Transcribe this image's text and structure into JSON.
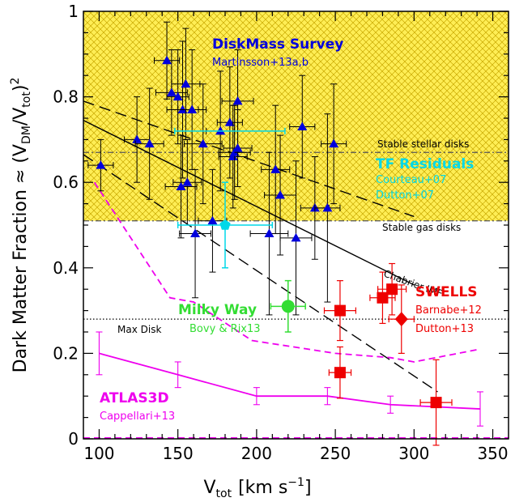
{
  "chart_data": {
    "type": "scatter",
    "xlabel": {
      "base": "V",
      "sub": "tot",
      "unit": "[km s",
      "unit_sup": "−1",
      "unit_end": "]"
    },
    "ylabel": {
      "prefix": "Dark Matter Fraction ≈ (V",
      "sub1": "DM",
      "mid": "/V",
      "sub2": "tot",
      "suffix": ")",
      "sup": "2"
    },
    "xlim": [
      90,
      360
    ],
    "ylim": [
      0,
      1
    ],
    "x_ticks": [
      "100",
      "150",
      "200",
      "250",
      "300",
      "350"
    ],
    "y_ticks": [
      "0",
      "0.2",
      "0.4",
      "0.6",
      "0.8",
      "1"
    ],
    "colors": {
      "hatch_fill": "#ffee55",
      "hatch_line": "#c8a800",
      "blue": "#0000dd",
      "cyan": "#00d8e8",
      "red": "#ee0000",
      "green": "#33dd33",
      "magenta": "#ee00ee"
    },
    "bands": [
      {
        "y_low": 0.51,
        "y_high": 1.0,
        "label": "Stable gas disks",
        "line_y": 0.51
      },
      {
        "line_y": 0.67,
        "label": "Stable stellar disks"
      }
    ],
    "reference_lines": [
      {
        "name": "Max Disk",
        "y": 0.28,
        "style": "dotted"
      }
    ],
    "model_lines": [
      {
        "name": "Chabrier IMF",
        "style": "solid",
        "points": [
          [
            90,
            0.745
          ],
          [
            300,
            0.36
          ]
        ]
      },
      {
        "style": "dashed",
        "points": [
          [
            90,
            0.79
          ],
          [
            300,
            0.52
          ]
        ]
      },
      {
        "style": "dashed",
        "points": [
          [
            90,
            0.665
          ],
          [
            315,
            0.11
          ]
        ]
      }
    ],
    "series": [
      {
        "name": "DiskMass Survey",
        "sublabel": "Martinsson+13a,b",
        "marker": "triangle",
        "points": [
          {
            "x": 101,
            "y": 0.64,
            "xerr": 8,
            "yerr": 0.06
          },
          {
            "x": 124,
            "y": 0.7,
            "xerr": 8,
            "yerr": 0.1
          },
          {
            "x": 132,
            "y": 0.69,
            "xerr": 9,
            "yerr": 0.13
          },
          {
            "x": 143,
            "y": 0.885,
            "xerr": 8,
            "yerr": 0.09
          },
          {
            "x": 146,
            "y": 0.81,
            "xerr": 10,
            "yerr": 0.1
          },
          {
            "x": 150,
            "y": 0.8,
            "xerr": 7,
            "yerr": 0.11
          },
          {
            "x": 152,
            "y": 0.59,
            "xerr": 10,
            "yerr": 0.12
          },
          {
            "x": 153,
            "y": 0.77,
            "xerr": 10,
            "yerr": 0.16
          },
          {
            "x": 155,
            "y": 0.83,
            "xerr": 9,
            "yerr": 0.13
          },
          {
            "x": 156,
            "y": 0.6,
            "xerr": 9,
            "yerr": 0.1
          },
          {
            "x": 159,
            "y": 0.77,
            "xerr": 9,
            "yerr": 0.14
          },
          {
            "x": 161,
            "y": 0.48,
            "xerr": 10,
            "yerr": 0.15
          },
          {
            "x": 166,
            "y": 0.69,
            "xerr": 12,
            "yerr": 0.14
          },
          {
            "x": 172,
            "y": 0.51,
            "xerr": 9,
            "yerr": 0.12
          },
          {
            "x": 177,
            "y": 0.72,
            "xerr": 9,
            "yerr": 0.14
          },
          {
            "x": 183,
            "y": 0.74,
            "xerr": 8,
            "yerr": 0.13
          },
          {
            "x": 185,
            "y": 0.66,
            "xerr": 9,
            "yerr": 0.12
          },
          {
            "x": 186,
            "y": 0.67,
            "xerr": 10,
            "yerr": 0.11
          },
          {
            "x": 188,
            "y": 0.79,
            "xerr": 10,
            "yerr": 0.12
          },
          {
            "x": 188,
            "y": 0.68,
            "xerr": 9,
            "yerr": 0.09
          },
          {
            "x": 208,
            "y": 0.48,
            "xerr": 12,
            "yerr": 0.19
          },
          {
            "x": 212,
            "y": 0.63,
            "xerr": 9,
            "yerr": 0.15
          },
          {
            "x": 215,
            "y": 0.57,
            "xerr": 10,
            "yerr": 0.14
          },
          {
            "x": 225,
            "y": 0.47,
            "xerr": 10,
            "yerr": 0.18
          },
          {
            "x": 229,
            "y": 0.73,
            "xerr": 8,
            "yerr": 0.12
          },
          {
            "x": 237,
            "y": 0.54,
            "xerr": 9,
            "yerr": 0.12
          },
          {
            "x": 245,
            "y": 0.54,
            "xerr": 8,
            "yerr": 0.22
          },
          {
            "x": 249,
            "y": 0.69,
            "xerr": 8,
            "yerr": 0.14
          }
        ]
      },
      {
        "name": "TF Residuals",
        "sublabel": "Courteau+07 / Dutton+07",
        "marker": "pentagon",
        "points": [
          {
            "x": 180,
            "y": 0.5,
            "xerr": 30,
            "yerr": 0.1
          },
          {
            "x": 183,
            "y": 0.72,
            "xerr": 35,
            "yerr": 0.0
          }
        ]
      },
      {
        "name": "SWELLS",
        "sublabel": "Barnabe+12 / Dutton+13",
        "marker": "square",
        "points": [
          {
            "x": 253,
            "y": 0.3,
            "xerr": 10,
            "yerr": 0.07
          },
          {
            "x": 253,
            "y": 0.155,
            "xerr": 7,
            "yerr": 0.06
          },
          {
            "x": 280,
            "y": 0.33,
            "xerr": 8,
            "yerr": 0.06
          },
          {
            "x": 286,
            "y": 0.35,
            "xerr": 9,
            "yerr": 0.06
          },
          {
            "x": 314,
            "y": 0.085,
            "xerr": 10,
            "yerr": 0.1
          }
        ],
        "diamond": {
          "x": 292,
          "y": 0.28,
          "xerr": 8,
          "yerr": 0.08
        }
      },
      {
        "name": "Milky Way",
        "sublabel": "Bovy & Rix13",
        "marker": "circle",
        "points": [
          {
            "x": 220,
            "y": 0.31,
            "xerr": 11,
            "yerr": 0.06
          }
        ]
      },
      {
        "name": "ATLAS3D",
        "sublabel": "Cappellari+13",
        "marker": "line",
        "points": [
          {
            "x": 100,
            "y": 0.2,
            "yerr": 0.05
          },
          {
            "x": 150,
            "y": 0.15,
            "yerr": 0.03
          },
          {
            "x": 200,
            "y": 0.1,
            "yerr": 0.02
          },
          {
            "x": 245,
            "y": 0.1,
            "yerr": 0.02
          },
          {
            "x": 285,
            "y": 0.08,
            "yerr": 0.02
          },
          {
            "x": 342,
            "y": 0.07,
            "yerr": 0.04
          }
        ],
        "upper_envelope": [
          [
            97,
            0.6
          ],
          [
            145,
            0.33
          ],
          [
            160,
            0.32
          ],
          [
            197,
            0.23
          ],
          [
            250,
            0.2
          ],
          [
            285,
            0.19
          ],
          [
            300,
            0.18
          ],
          [
            342,
            0.21
          ]
        ]
      }
    ],
    "annotations": {
      "stable_stellar": "Stable stellar disks",
      "stable_gas": "Stable gas disks",
      "chabrier": "Chabrier IMF",
      "max_disk": "Max Disk",
      "diskmass_title": "DiskMass Survey",
      "diskmass_sub": "Martinsson+13a,b",
      "tf_title": "TF Residuals",
      "tf_sub1": "Courteau+07",
      "tf_sub2": "Dutton+07",
      "swells_title": "SWELLS",
      "swells_sub1": "Barnabe+12",
      "swells_sub2": "Dutton+13",
      "mw_title": "Milky Way",
      "mw_sub": "Bovy & Rix13",
      "atlas_title": "ATLAS3D",
      "atlas_sub": "Cappellari+13"
    }
  }
}
